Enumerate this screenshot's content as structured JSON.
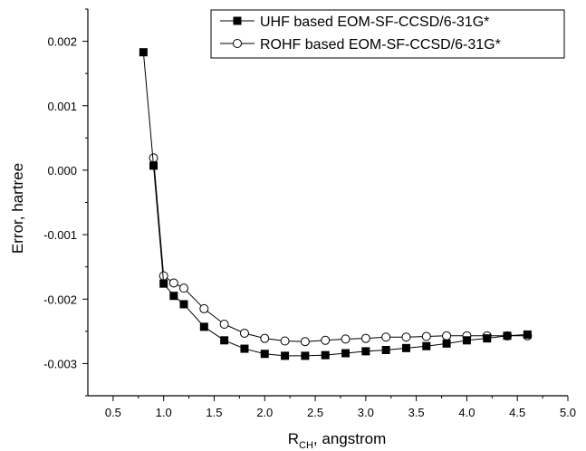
{
  "chart_data": {
    "type": "line",
    "title": "",
    "xlabel": {
      "main": "R",
      "sub": "CH",
      "rest": ", angstrom"
    },
    "ylabel": "Error, hartree",
    "xlim": [
      0.25,
      5.0
    ],
    "ylim": [
      -0.0035,
      0.0025
    ],
    "x_ticks": [
      0.5,
      1.0,
      1.5,
      2.0,
      2.5,
      3.0,
      3.5,
      4.0,
      4.5,
      5.0
    ],
    "x_tick_labels": [
      "0.5",
      "1.0",
      "1.5",
      "2.0",
      "2.5",
      "3.0",
      "3.5",
      "4.0",
      "4.5",
      "5.0"
    ],
    "y_ticks": [
      -0.003,
      -0.002,
      -0.001,
      0.0,
      0.001,
      0.002
    ],
    "y_tick_labels": [
      "-0.003",
      "-0.002",
      "-0.001",
      "0.000",
      "0.001",
      "0.002"
    ],
    "grid": false,
    "legend_position": "top-right",
    "series": [
      {
        "name": "UHF based EOM-SF-CCSD/6-31G*",
        "marker": "filled-square",
        "color": "#000000",
        "x": [
          0.8,
          0.9,
          1.0,
          1.1,
          1.2,
          1.4,
          1.6,
          1.8,
          2.0,
          2.2,
          2.4,
          2.6,
          2.8,
          3.0,
          3.2,
          3.4,
          3.6,
          3.8,
          4.0,
          4.2,
          4.4,
          4.6
        ],
        "y": [
          0.00183,
          7e-05,
          -0.00176,
          -0.00195,
          -0.00208,
          -0.00243,
          -0.00264,
          -0.00277,
          -0.00285,
          -0.00288,
          -0.00288,
          -0.00287,
          -0.00284,
          -0.00281,
          -0.00279,
          -0.00276,
          -0.00273,
          -0.00269,
          -0.00264,
          -0.00261,
          -0.00257,
          -0.00255
        ]
      },
      {
        "name": "ROHF based EOM-SF-CCSD/6-31G*",
        "marker": "open-circle",
        "color": "#000000",
        "x": [
          0.9,
          1.0,
          1.1,
          1.2,
          1.4,
          1.6,
          1.8,
          2.0,
          2.2,
          2.4,
          2.6,
          2.8,
          3.0,
          3.2,
          3.4,
          3.6,
          3.8,
          4.0,
          4.2,
          4.4,
          4.6
        ],
        "y": [
          0.00019,
          -0.00164,
          -0.00175,
          -0.00183,
          -0.00215,
          -0.00239,
          -0.00253,
          -0.00261,
          -0.00265,
          -0.00266,
          -0.00264,
          -0.00262,
          -0.00261,
          -0.00259,
          -0.00259,
          -0.00258,
          -0.00257,
          -0.00257,
          -0.00257,
          -0.00257,
          -0.00257
        ]
      }
    ]
  }
}
